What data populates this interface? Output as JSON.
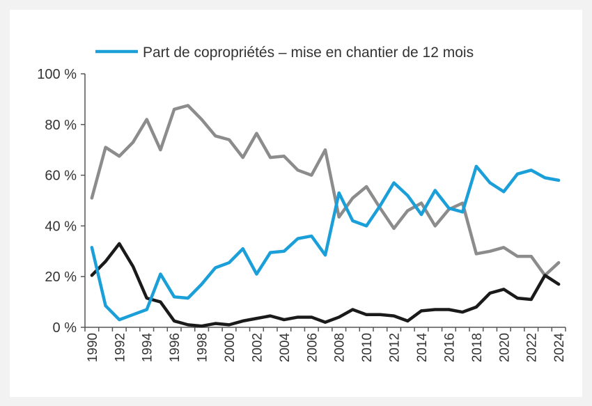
{
  "chart_data": {
    "type": "line",
    "title": "",
    "xlabel": "",
    "ylabel": "",
    "ylim": [
      0,
      100
    ],
    "yticks": [
      "0 %",
      "20 %",
      "40 %",
      "60 %",
      "80 %",
      "100 %"
    ],
    "ytick_values": [
      0,
      20,
      40,
      60,
      80,
      100
    ],
    "x": [
      1990,
      1991,
      1992,
      1993,
      1994,
      1995,
      1996,
      1997,
      1998,
      1999,
      2000,
      2001,
      2002,
      2003,
      2004,
      2005,
      2006,
      2007,
      2008,
      2009,
      2010,
      2011,
      2012,
      2013,
      2014,
      2015,
      2016,
      2017,
      2018,
      2019,
      2020,
      2021,
      2022,
      2023,
      2024
    ],
    "xtick_labels": [
      "1990",
      "1992",
      "1994",
      "1996",
      "1998",
      "2000",
      "2002",
      "2004",
      "2006",
      "2008",
      "2010",
      "2012",
      "2014",
      "2016",
      "2018",
      "2020",
      "2022",
      "2024"
    ],
    "grid": false,
    "legend_position": "top",
    "series": [
      {
        "name": "Part de copropriétés – mise en chantier de 12 mois",
        "color": "#1a9fd9",
        "values": [
          31.5,
          8.5,
          3,
          5,
          7,
          21,
          12,
          11.5,
          17,
          23.5,
          25.5,
          31,
          21,
          29.5,
          30,
          35,
          36,
          28.5,
          53,
          42,
          40,
          48,
          57,
          52,
          44.5,
          54,
          47,
          45.5,
          63.5,
          57,
          53.5,
          60.5,
          62,
          59,
          58
        ]
      },
      {
        "color": "#8c8c8c",
        "values": [
          51,
          71,
          67.5,
          73,
          82,
          70,
          86,
          87.5,
          82,
          75.5,
          74,
          67,
          76.5,
          67,
          67.5,
          62,
          60,
          70,
          43.5,
          51,
          55.5,
          47,
          39,
          46,
          49,
          40,
          46.5,
          49,
          29,
          30,
          31.5,
          28,
          28,
          20.5,
          25.5
        ]
      },
      {
        "color": "#1a1a1a",
        "values": [
          20.5,
          26,
          33,
          24,
          11.5,
          10,
          2.5,
          1,
          0.5,
          1.5,
          1,
          2.5,
          3.5,
          4.5,
          3,
          4,
          4,
          2,
          4,
          7,
          5,
          5,
          4.5,
          2.5,
          6.5,
          7,
          7,
          6,
          8,
          13.5,
          15,
          11.5,
          11,
          20.5,
          17
        ]
      }
    ]
  }
}
